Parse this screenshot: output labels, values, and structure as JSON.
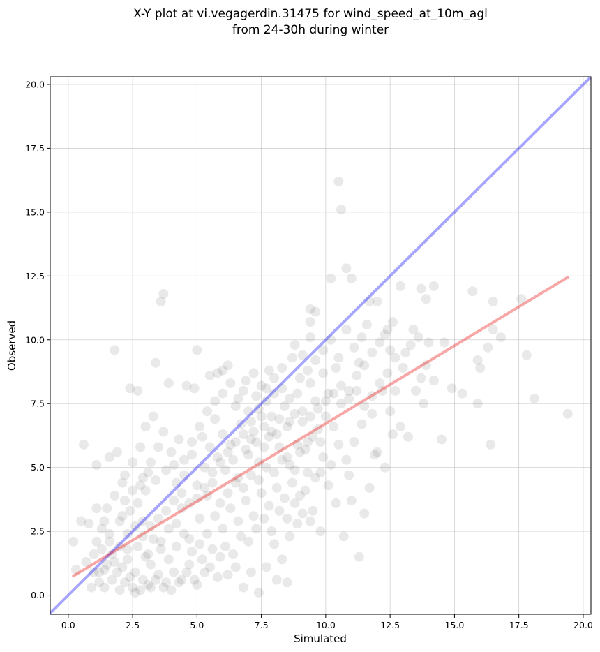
{
  "chart_data": {
    "type": "scatter",
    "title_line1": "X-Y plot at vi.vegagerdin.31475 for wind_speed_at_10m_agl",
    "title_line2": "from 24-30h during winter",
    "xlabel": "Simulated",
    "ylabel": "Observed",
    "xlim": [
      -0.7,
      20.3
    ],
    "ylim": [
      -0.75,
      20.3
    ],
    "xticks": [
      0.0,
      2.5,
      5.0,
      7.5,
      10.0,
      12.5,
      15.0,
      17.5,
      20.0
    ],
    "yticks": [
      0.0,
      2.5,
      5.0,
      7.5,
      10.0,
      12.5,
      15.0,
      17.5,
      20.0
    ],
    "xtick_labels": [
      "0.0",
      "2.5",
      "5.0",
      "7.5",
      "10.0",
      "12.5",
      "15.0",
      "17.5",
      "20.0"
    ],
    "ytick_labels": [
      "0.0",
      "2.5",
      "5.0",
      "7.5",
      "10.0",
      "12.5",
      "15.0",
      "17.5",
      "20.0"
    ],
    "grid": true,
    "point_color": "#555555",
    "identity_line": {
      "color": "#0000ff",
      "from": [
        -0.7,
        -0.7
      ],
      "to": [
        20.3,
        20.3
      ]
    },
    "fit_line": {
      "color": "#ee2222",
      "from": [
        0.2,
        0.75
      ],
      "to": [
        19.4,
        12.45
      ]
    },
    "points": [
      [
        10.5,
        16.2
      ],
      [
        10.6,
        15.1
      ],
      [
        10.8,
        12.8
      ],
      [
        10.2,
        12.4
      ],
      [
        11.0,
        12.4
      ],
      [
        3.6,
        11.5
      ],
      [
        3.7,
        11.8
      ],
      [
        9.4,
        11.2
      ],
      [
        9.6,
        11.1
      ],
      [
        9.4,
        10.7
      ],
      [
        1.8,
        9.6
      ],
      [
        5.0,
        9.6
      ],
      [
        3.4,
        9.1
      ],
      [
        5.5,
        8.6
      ],
      [
        5.8,
        8.7
      ],
      [
        6.0,
        8.8
      ],
      [
        6.2,
        9.0
      ],
      [
        2.4,
        8.1
      ],
      [
        2.7,
        8.0
      ],
      [
        3.9,
        8.3
      ],
      [
        4.6,
        8.2
      ],
      [
        4.9,
        8.1
      ],
      [
        0.6,
        5.9
      ],
      [
        1.1,
        5.1
      ],
      [
        1.6,
        5.4
      ],
      [
        1.9,
        5.6
      ],
      [
        2.2,
        4.7
      ],
      [
        0.8,
        2.8
      ],
      [
        0.5,
        2.9
      ],
      [
        0.2,
        2.1
      ],
      [
        0.3,
        1.0
      ],
      [
        0.7,
        1.3
      ],
      [
        1.0,
        1.6
      ],
      [
        1.2,
        0.9
      ],
      [
        1.5,
        1.2
      ],
      [
        1.7,
        0.6
      ],
      [
        1.4,
        0.3
      ],
      [
        2.0,
        0.2
      ],
      [
        2.6,
        0.1
      ],
      [
        3.2,
        0.3
      ],
      [
        2.3,
        1.8
      ],
      [
        2.9,
        2.3
      ],
      [
        3.1,
        1.6
      ],
      [
        3.6,
        2.1
      ],
      [
        3.9,
        1.4
      ],
      [
        4.2,
        2.8
      ],
      [
        4.4,
        3.4
      ],
      [
        4.7,
        2.2
      ],
      [
        5.1,
        3.0
      ],
      [
        5.4,
        3.9
      ],
      [
        5.6,
        4.4
      ],
      [
        5.9,
        3.6
      ],
      [
        6.1,
        4.9
      ],
      [
        6.4,
        5.3
      ],
      [
        6.6,
        4.6
      ],
      [
        6.9,
        5.7
      ],
      [
        7.1,
        6.1
      ],
      [
        7.4,
        5.2
      ],
      [
        7.6,
        6.6
      ],
      [
        7.9,
        7.0
      ],
      [
        8.1,
        6.3
      ],
      [
        8.4,
        7.4
      ],
      [
        8.6,
        6.8
      ],
      [
        8.9,
        7.9
      ],
      [
        9.1,
        7.2
      ],
      [
        9.4,
        8.3
      ],
      [
        9.6,
        7.6
      ],
      [
        9.9,
        8.7
      ],
      [
        10.1,
        7.9
      ],
      [
        10.4,
        8.9
      ],
      [
        7.0,
        7.2
      ],
      [
        7.3,
        7.8
      ],
      [
        7.7,
        8.1
      ],
      [
        8.0,
        8.5
      ],
      [
        8.3,
        8.9
      ],
      [
        8.7,
        9.3
      ],
      [
        6.5,
        7.4
      ],
      [
        6.8,
        8.0
      ],
      [
        5.2,
        6.2
      ],
      [
        5.7,
        6.9
      ],
      [
        4.0,
        5.6
      ],
      [
        4.3,
        6.1
      ],
      [
        3.7,
        6.4
      ],
      [
        3.3,
        7.0
      ],
      [
        3.0,
        6.6
      ],
      [
        2.8,
        5.8
      ],
      [
        2.5,
        5.2
      ],
      [
        2.1,
        4.4
      ],
      [
        1.8,
        3.9
      ],
      [
        1.5,
        3.4
      ],
      [
        1.3,
        2.6
      ],
      [
        1.1,
        2.1
      ],
      [
        1.6,
        2.4
      ],
      [
        2.0,
        2.9
      ],
      [
        2.4,
        3.3
      ],
      [
        2.7,
        3.6
      ],
      [
        3.0,
        4.1
      ],
      [
        3.4,
        4.5
      ],
      [
        3.8,
        4.9
      ],
      [
        4.1,
        5.1
      ],
      [
        4.5,
        4.7
      ],
      [
        4.8,
        5.5
      ],
      [
        5.0,
        4.3
      ],
      [
        5.3,
        5.0
      ],
      [
        5.5,
        5.8
      ],
      [
        5.8,
        5.4
      ],
      [
        6.0,
        6.3
      ],
      [
        6.3,
        5.9
      ],
      [
        6.7,
        6.7
      ],
      [
        7.2,
        6.4
      ],
      [
        7.5,
        7.0
      ],
      [
        7.8,
        6.2
      ],
      [
        8.2,
        5.8
      ],
      [
        8.5,
        5.4
      ],
      [
        8.8,
        4.9
      ],
      [
        9.0,
        5.6
      ],
      [
        9.3,
        6.0
      ],
      [
        9.7,
        6.5
      ],
      [
        10.0,
        7.0
      ],
      [
        10.3,
        6.6
      ],
      [
        10.6,
        7.5
      ],
      [
        10.9,
        8.0
      ],
      [
        11.2,
        8.6
      ],
      [
        11.5,
        9.0
      ],
      [
        11.8,
        9.5
      ],
      [
        12.1,
        9.9
      ],
      [
        12.4,
        10.4
      ],
      [
        12.7,
        9.3
      ],
      [
        13.0,
        8.9
      ],
      [
        13.3,
        9.8
      ],
      [
        13.6,
        10.1
      ],
      [
        13.9,
        9.0
      ],
      [
        14.2,
        8.4
      ],
      [
        14.6,
        9.9
      ],
      [
        14.9,
        8.1
      ],
      [
        15.3,
        7.9
      ],
      [
        15.7,
        11.9
      ],
      [
        15.9,
        9.2
      ],
      [
        16.0,
        8.9
      ],
      [
        16.3,
        9.7
      ],
      [
        16.5,
        10.4
      ],
      [
        16.5,
        11.5
      ],
      [
        16.8,
        10.1
      ],
      [
        17.6,
        11.6
      ],
      [
        17.8,
        9.4
      ],
      [
        18.1,
        7.7
      ],
      [
        19.4,
        7.1
      ],
      [
        16.4,
        5.9
      ],
      [
        15.9,
        7.5
      ],
      [
        14.5,
        6.1
      ],
      [
        13.8,
        7.5
      ],
      [
        13.5,
        8.0
      ],
      [
        13.2,
        6.2
      ],
      [
        12.9,
        6.6
      ],
      [
        12.6,
        6.3
      ],
      [
        12.3,
        5.0
      ],
      [
        12.0,
        5.6
      ],
      [
        11.7,
        4.2
      ],
      [
        11.5,
        3.2
      ],
      [
        11.3,
        1.5
      ],
      [
        11.0,
        3.7
      ],
      [
        10.7,
        2.3
      ],
      [
        10.4,
        3.6
      ],
      [
        10.1,
        4.3
      ],
      [
        9.8,
        2.5
      ],
      [
        9.5,
        3.3
      ],
      [
        9.2,
        4.1
      ],
      [
        8.9,
        2.8
      ],
      [
        8.6,
        2.3
      ],
      [
        8.3,
        1.4
      ],
      [
        8.0,
        2.0
      ],
      [
        7.7,
        1.1
      ],
      [
        7.4,
        0.1
      ],
      [
        7.1,
        0.9
      ],
      [
        6.8,
        0.3
      ],
      [
        6.5,
        1.1
      ],
      [
        6.2,
        0.8
      ],
      [
        5.9,
        1.5
      ],
      [
        5.6,
        1.8
      ],
      [
        5.3,
        0.9
      ],
      [
        5.0,
        0.4
      ],
      [
        4.7,
        1.2
      ],
      [
        4.4,
        0.6
      ],
      [
        4.1,
        0.9
      ],
      [
        3.8,
        0.5
      ],
      [
        3.5,
        0.8
      ],
      [
        3.2,
        1.2
      ],
      [
        2.9,
        0.6
      ],
      [
        2.6,
        0.9
      ],
      [
        2.3,
        1.4
      ],
      [
        8.5,
        0.5
      ],
      [
        8.1,
        0.6
      ],
      [
        9.8,
        4.8
      ],
      [
        10.9,
        4.7
      ],
      [
        11.9,
        5.5
      ],
      [
        12.5,
        7.2
      ],
      [
        12.2,
        8.0
      ],
      [
        11.8,
        7.1
      ],
      [
        11.4,
        6.7
      ],
      [
        11.1,
        6.0
      ],
      [
        10.8,
        5.3
      ],
      [
        10.5,
        5.9
      ],
      [
        10.2,
        5.1
      ],
      [
        9.9,
        5.4
      ],
      [
        9.6,
        4.6
      ],
      [
        9.3,
        4.8
      ],
      [
        9.0,
        3.9
      ],
      [
        8.7,
        4.4
      ],
      [
        8.4,
        3.8
      ],
      [
        8.1,
        4.2
      ],
      [
        7.8,
        3.5
      ],
      [
        7.5,
        4.0
      ],
      [
        7.2,
        3.1
      ],
      [
        6.9,
        3.7
      ],
      [
        6.6,
        2.9
      ],
      [
        6.3,
        3.4
      ],
      [
        6.0,
        2.6
      ],
      [
        5.7,
        3.1
      ],
      [
        5.4,
        2.4
      ],
      [
        5.1,
        2.0
      ],
      [
        4.8,
        1.7
      ],
      [
        4.5,
        2.4
      ],
      [
        4.2,
        1.9
      ],
      [
        3.9,
        2.6
      ],
      [
        3.6,
        1.8
      ],
      [
        3.3,
        2.2
      ],
      [
        3.0,
        1.5
      ],
      [
        2.7,
        1.9
      ],
      [
        2.4,
        0.7
      ],
      [
        2.1,
        1.1
      ],
      [
        1.8,
        1.3
      ],
      [
        1.9,
        0.9
      ],
      [
        2.2,
        0.5
      ],
      [
        2.5,
        0.3
      ],
      [
        2.8,
        0.2
      ],
      [
        3.1,
        0.4
      ],
      [
        3.4,
        0.6
      ],
      [
        3.7,
        0.3
      ],
      [
        4.0,
        0.2
      ],
      [
        4.3,
        0.5
      ],
      [
        4.6,
        0.9
      ],
      [
        4.9,
        0.6
      ],
      [
        5.2,
        1.4
      ],
      [
        5.5,
        1.1
      ],
      [
        5.8,
        0.7
      ],
      [
        6.1,
        1.9
      ],
      [
        6.4,
        1.6
      ],
      [
        6.7,
        2.3
      ],
      [
        7.0,
        2.1
      ],
      [
        7.3,
        2.6
      ],
      [
        7.6,
        3.0
      ],
      [
        7.9,
        2.5
      ],
      [
        8.2,
        3.3
      ],
      [
        8.5,
        3.0
      ],
      [
        8.8,
        3.6
      ],
      [
        9.1,
        3.2
      ],
      [
        9.4,
        2.9
      ],
      [
        6.2,
        4.0
      ],
      [
        6.5,
        4.4
      ],
      [
        6.8,
        4.2
      ],
      [
        7.1,
        4.7
      ],
      [
        7.4,
        4.5
      ],
      [
        7.7,
        5.0
      ],
      [
        8.0,
        4.8
      ],
      [
        8.3,
        5.3
      ],
      [
        8.6,
        5.1
      ],
      [
        8.9,
        5.9
      ],
      [
        9.2,
        5.7
      ],
      [
        9.5,
        6.2
      ],
      [
        9.8,
        6.0
      ],
      [
        7.0,
        5.5
      ],
      [
        7.3,
        6.0
      ],
      [
        7.6,
        5.8
      ],
      [
        7.9,
        6.4
      ],
      [
        8.2,
        6.9
      ],
      [
        8.5,
        6.6
      ],
      [
        8.8,
        7.1
      ],
      [
        9.1,
        6.8
      ],
      [
        9.4,
        7.0
      ],
      [
        9.7,
        7.3
      ],
      [
        10.0,
        7.6
      ],
      [
        10.3,
        7.9
      ],
      [
        10.6,
        8.2
      ],
      [
        10.9,
        7.7
      ],
      [
        11.2,
        8.0
      ],
      [
        11.5,
        7.4
      ],
      [
        11.8,
        7.8
      ],
      [
        12.1,
        8.3
      ],
      [
        12.4,
        8.7
      ],
      [
        12.7,
        8.0
      ],
      [
        5.9,
        5.2
      ],
      [
        6.2,
        5.6
      ],
      [
        6.5,
        6.0
      ],
      [
        6.8,
        6.3
      ],
      [
        7.1,
        6.8
      ],
      [
        7.4,
        7.3
      ],
      [
        7.7,
        7.6
      ],
      [
        8.0,
        7.9
      ],
      [
        8.3,
        8.1
      ],
      [
        8.6,
        7.7
      ],
      [
        4.7,
        3.6
      ],
      [
        5.0,
        3.8
      ],
      [
        5.3,
        4.2
      ],
      [
        5.6,
        4.8
      ],
      [
        4.4,
        4.0
      ],
      [
        4.1,
        3.7
      ],
      [
        3.8,
        3.3
      ],
      [
        3.5,
        3.0
      ],
      [
        3.2,
        2.7
      ],
      [
        2.9,
        2.9
      ],
      [
        1.2,
        0.5
      ],
      [
        0.9,
        0.3
      ],
      [
        1.0,
        0.9
      ],
      [
        1.4,
        1.0
      ],
      [
        1.7,
        1.6
      ],
      [
        2.0,
        1.9
      ],
      [
        2.3,
        2.4
      ],
      [
        2.6,
        2.7
      ],
      [
        1.3,
        1.8
      ],
      [
        1.6,
        2.1
      ],
      [
        2.1,
        3.1
      ],
      [
        1.4,
        2.9
      ],
      [
        1.1,
        3.4
      ],
      [
        2.5,
        4.1
      ],
      [
        2.2,
        3.7
      ],
      [
        2.9,
        4.6
      ],
      [
        3.2,
        5.2
      ],
      [
        3.5,
        5.8
      ],
      [
        3.1,
        4.8
      ],
      [
        2.8,
        4.3
      ],
      [
        4.2,
        4.4
      ],
      [
        4.5,
        5.3
      ],
      [
        4.8,
        6.0
      ],
      [
        5.1,
        6.6
      ],
      [
        5.4,
        7.2
      ],
      [
        5.7,
        7.6
      ],
      [
        6.0,
        7.9
      ],
      [
        6.3,
        8.3
      ],
      [
        6.6,
        7.7
      ],
      [
        6.9,
        8.4
      ],
      [
        7.2,
        8.7
      ],
      [
        7.5,
        8.2
      ],
      [
        7.8,
        8.8
      ],
      [
        9.0,
        8.5
      ],
      [
        9.3,
        8.8
      ],
      [
        9.6,
        9.2
      ],
      [
        9.9,
        9.6
      ],
      [
        10.2,
        10.0
      ],
      [
        10.5,
        9.3
      ],
      [
        10.8,
        10.4
      ],
      [
        11.1,
        9.7
      ],
      [
        11.4,
        10.1
      ],
      [
        11.7,
        11.5
      ],
      [
        12.0,
        11.5
      ],
      [
        12.3,
        10.2
      ],
      [
        12.6,
        10.7
      ],
      [
        12.9,
        12.1
      ],
      [
        13.7,
        12.0
      ],
      [
        14.2,
        12.1
      ],
      [
        13.9,
        11.6
      ],
      [
        11.6,
        10.6
      ],
      [
        11.3,
        9.1
      ],
      [
        12.5,
        9.6
      ],
      [
        13.1,
        9.5
      ],
      [
        13.4,
        10.4
      ],
      [
        13.7,
        8.5
      ],
      [
        14.0,
        9.9
      ],
      [
        9.1,
        9.4
      ],
      [
        8.8,
        9.8
      ],
      [
        9.4,
        10.1
      ]
    ]
  }
}
